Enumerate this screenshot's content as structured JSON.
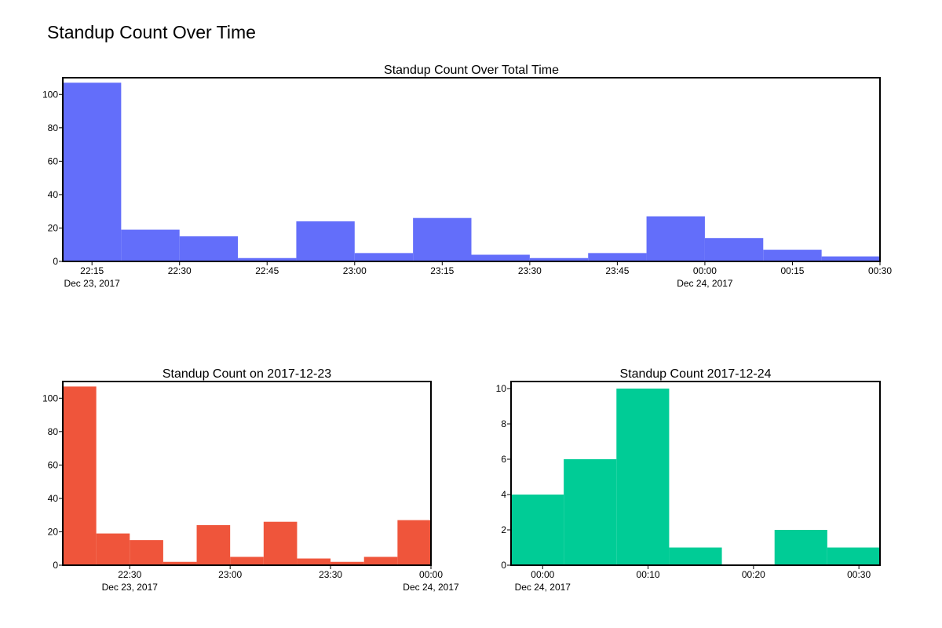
{
  "page": {
    "title": "Standup Count Over Time"
  },
  "colors": {
    "blue": "#636efa",
    "red": "#ef553b",
    "green": "#00cc96"
  },
  "chart_data": [
    {
      "type": "bar",
      "title": "Standup Count Over Total Time",
      "color": "#636efa",
      "x_start": "2017-12-23 22:10",
      "x_end": "2017-12-24 00:30",
      "bin_minutes": 10,
      "bins": [
        {
          "start": "22:10",
          "end": "22:20",
          "value": 107
        },
        {
          "start": "22:20",
          "end": "22:30",
          "value": 19
        },
        {
          "start": "22:30",
          "end": "22:40",
          "value": 15
        },
        {
          "start": "22:40",
          "end": "22:50",
          "value": 2
        },
        {
          "start": "22:50",
          "end": "23:00",
          "value": 24
        },
        {
          "start": "23:00",
          "end": "23:10",
          "value": 5
        },
        {
          "start": "23:10",
          "end": "23:20",
          "value": 26
        },
        {
          "start": "23:20",
          "end": "23:30",
          "value": 4
        },
        {
          "start": "23:30",
          "end": "23:40",
          "value": 2
        },
        {
          "start": "23:40",
          "end": "23:50",
          "value": 5
        },
        {
          "start": "23:50",
          "end": "00:00",
          "value": 27
        },
        {
          "start": "00:00",
          "end": "00:10",
          "value": 14
        },
        {
          "start": "00:10",
          "end": "00:20",
          "value": 7
        },
        {
          "start": "00:20",
          "end": "00:30",
          "value": 3
        }
      ],
      "ylim": [
        0,
        110
      ],
      "yticks": [
        0,
        20,
        40,
        60,
        80,
        100
      ],
      "xticks": [
        {
          "label": "22:15",
          "sub": "Dec 23, 2017",
          "minutes": 5
        },
        {
          "label": "22:30",
          "minutes": 20
        },
        {
          "label": "22:45",
          "minutes": 35
        },
        {
          "label": "23:00",
          "minutes": 50
        },
        {
          "label": "23:15",
          "minutes": 65
        },
        {
          "label": "23:30",
          "minutes": 80
        },
        {
          "label": "23:45",
          "minutes": 95
        },
        {
          "label": "00:00",
          "sub": "Dec 24, 2017",
          "minutes": 110
        },
        {
          "label": "00:15",
          "minutes": 125
        },
        {
          "label": "00:30",
          "minutes": 140
        }
      ]
    },
    {
      "type": "bar",
      "title": "Standup Count on 2017-12-23",
      "color": "#ef553b",
      "x_start": "2017-12-23 22:10",
      "x_end": "2017-12-24 00:00",
      "bin_minutes": 10,
      "bins": [
        {
          "start": "22:10",
          "end": "22:20",
          "value": 107
        },
        {
          "start": "22:20",
          "end": "22:30",
          "value": 19
        },
        {
          "start": "22:30",
          "end": "22:40",
          "value": 15
        },
        {
          "start": "22:40",
          "end": "22:50",
          "value": 2
        },
        {
          "start": "22:50",
          "end": "23:00",
          "value": 24
        },
        {
          "start": "23:00",
          "end": "23:10",
          "value": 5
        },
        {
          "start": "23:10",
          "end": "23:20",
          "value": 26
        },
        {
          "start": "23:20",
          "end": "23:30",
          "value": 4
        },
        {
          "start": "23:30",
          "end": "23:40",
          "value": 2
        },
        {
          "start": "23:40",
          "end": "23:50",
          "value": 5
        },
        {
          "start": "23:50",
          "end": "00:00",
          "value": 27
        }
      ],
      "ylim": [
        0,
        110
      ],
      "yticks": [
        0,
        20,
        40,
        60,
        80,
        100
      ],
      "xticks": [
        {
          "label": "22:30",
          "sub": "Dec 23, 2017",
          "minutes": 20
        },
        {
          "label": "23:00",
          "minutes": 50
        },
        {
          "label": "23:30",
          "minutes": 80
        },
        {
          "label": "00:00",
          "sub": "Dec 24, 2017",
          "minutes": 110
        }
      ]
    },
    {
      "type": "bar",
      "title": "Standup Count 2017-12-24",
      "color": "#00cc96",
      "x_start": "2017-12-23 23:57",
      "x_end": "2017-12-24 00:32",
      "bin_minutes": 5,
      "bins": [
        {
          "start": "23:57",
          "end": "00:02",
          "value": 4
        },
        {
          "start": "00:02",
          "end": "00:07",
          "value": 6
        },
        {
          "start": "00:07",
          "end": "00:12",
          "value": 10
        },
        {
          "start": "00:12",
          "end": "00:17",
          "value": 1
        },
        {
          "start": "00:17",
          "end": "00:22",
          "value": 0
        },
        {
          "start": "00:22",
          "end": "00:27",
          "value": 2
        },
        {
          "start": "00:27",
          "end": "00:32",
          "value": 1
        }
      ],
      "ylim": [
        0,
        10.4
      ],
      "yticks": [
        0,
        2,
        4,
        6,
        8,
        10
      ],
      "xticks": [
        {
          "label": "00:00",
          "sub": "Dec 24, 2017",
          "minutes": 3
        },
        {
          "label": "00:10",
          "minutes": 13
        },
        {
          "label": "00:20",
          "minutes": 23
        },
        {
          "label": "00:30",
          "minutes": 33
        }
      ]
    }
  ]
}
